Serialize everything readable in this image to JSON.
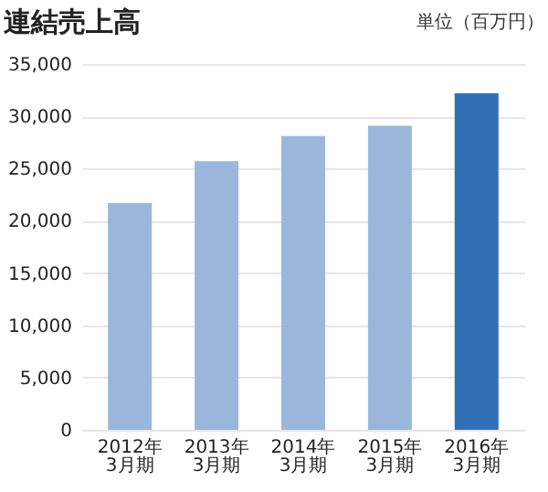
{
  "chart_data": {
    "type": "bar",
    "title": "連結売上高",
    "annotations": [
      "単位（百万円）"
    ],
    "categories": [
      "2012年\n3月期",
      "2013年\n3月期",
      "2014年\n3月期",
      "2015年\n3月期",
      "2016年\n3月期"
    ],
    "values": [
      21700,
      25700,
      28100,
      29100,
      32200
    ],
    "colors": [
      "#9ab7db",
      "#9ab7db",
      "#9ab7db",
      "#9ab7db",
      "#3170b5"
    ],
    "ylim": [
      0,
      35000
    ],
    "yticks": [
      0,
      {
        "value": 5000,
        "label": "5,000"
      },
      {
        "value": 10000,
        "label": "10,000"
      },
      {
        "value": 15000,
        "label": "15,000"
      },
      {
        "value": 20000,
        "label": "20,000"
      },
      {
        "value": 25000,
        "label": "25,000"
      },
      {
        "value": 30000,
        "label": "30,000"
      },
      {
        "value": 35000,
        "label": "35,000"
      }
    ],
    "grid": "y"
  }
}
